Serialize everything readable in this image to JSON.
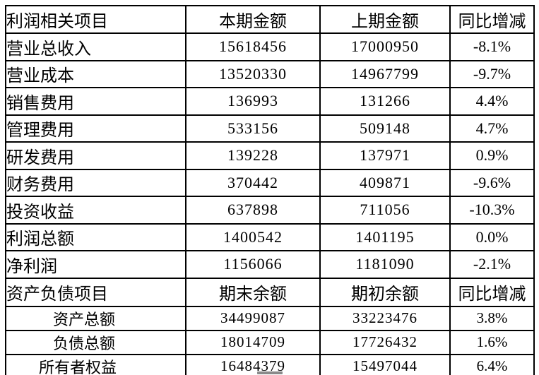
{
  "colors": {
    "background": "#ffffff",
    "border": "#000000",
    "text": "#000000",
    "scroll_handle": "#8a8a8a"
  },
  "table": {
    "profit_section": {
      "header": {
        "item": "利润相关项目",
        "current": "本期金额",
        "previous": "上期金额",
        "change": "同比增减"
      },
      "rows": [
        {
          "item": "营业总收入",
          "current": "15618456",
          "previous": "17000950",
          "change": "-8.1%"
        },
        {
          "item": "营业成本",
          "current": "13520330",
          "previous": "14967799",
          "change": "-9.7%"
        },
        {
          "item": "销售费用",
          "current": "136993",
          "previous": "131266",
          "change": "4.4%"
        },
        {
          "item": "管理费用",
          "current": "533156",
          "previous": "509148",
          "change": "4.7%"
        },
        {
          "item": "研发费用",
          "current": "139228",
          "previous": "137971",
          "change": "0.9%"
        },
        {
          "item": "财务费用",
          "current": "370442",
          "previous": "409871",
          "change": "-9.6%"
        },
        {
          "item": "投资收益",
          "current": "637898",
          "previous": "711056",
          "change": "-10.3%"
        },
        {
          "item": "利润总额",
          "current": "1400542",
          "previous": "1401195",
          "change": "0.0%"
        },
        {
          "item": "净利润",
          "current": "1156066",
          "previous": "1181090",
          "change": "-2.1%"
        }
      ]
    },
    "balance_section": {
      "header": {
        "item": "资产负债项目",
        "current": "期末余额",
        "previous": "期初余额",
        "change": "同比增减"
      },
      "rows": [
        {
          "item": "资产总额",
          "current": "34499087",
          "previous": "33223476",
          "change": "3.8%"
        },
        {
          "item": "负债总额",
          "current": "18014709",
          "previous": "17726432",
          "change": "1.6%"
        },
        {
          "item": "所有者权益",
          "current": "16484379",
          "previous": "15497044",
          "change": "6.4%"
        }
      ]
    }
  }
}
